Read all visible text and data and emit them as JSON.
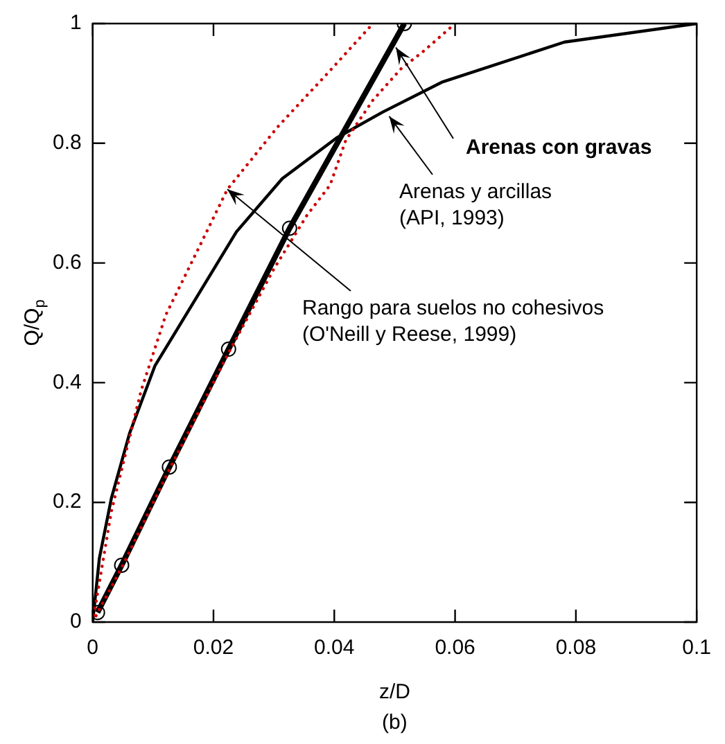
{
  "chart_data": {
    "type": "line",
    "xlabel": "z/D",
    "ylabel": "Q/Q$_{p}$",
    "xlim": [
      0,
      0.1
    ],
    "xticks": [
      0,
      0.02,
      0.04,
      0.06,
      0.08,
      0.1
    ],
    "ylim": [
      0,
      1
    ],
    "yticks": [
      0,
      0.2,
      0.4,
      0.6,
      0.8,
      1
    ],
    "grid": false,
    "legend": false,
    "series": [
      {
        "color": "#000000",
        "marker": "circle",
        "line_style": "solid",
        "x": [
          0.0008,
          0.0048,
          0.0127,
          0.0225,
          0.0326,
          0.0516
        ],
        "values": [
          0.016,
          0.095,
          0.259,
          0.456,
          0.658,
          1.0
        ]
      },
      {
        "color": "#000000",
        "marker": "none",
        "line_style": "solid",
        "x": [
          0,
          0.0011,
          0.0031,
          0.0061,
          0.0103,
          0.0238,
          0.0314,
          0.0404,
          0.048,
          0.0578,
          0.0781,
          0.1
        ],
        "values": [
          0,
          0.106,
          0.207,
          0.315,
          0.428,
          0.652,
          0.741,
          0.809,
          0.852,
          0.902,
          0.969,
          1.0
        ]
      },
      {
        "color": "#cc0000",
        "marker": "none",
        "line_style": "dotted",
        "x": [
          0,
          0.0031,
          0.008,
          0.0121,
          0.0178,
          0.0223,
          0.0306,
          0.0389,
          0.0464
        ],
        "values": [
          0,
          0.185,
          0.386,
          0.513,
          0.63,
          0.723,
          0.827,
          0.917,
          1.0
        ]
      },
      {
        "color": "#cc0000",
        "marker": "none",
        "line_style": "dotted",
        "x": [
          0,
          0.005,
          0.0127,
          0.0225,
          0.03,
          0.0355,
          0.0393,
          0.0419,
          0.0464,
          0.051,
          0.0548,
          0.06
        ],
        "values": [
          0,
          0.095,
          0.255,
          0.45,
          0.59,
          0.68,
          0.73,
          0.805,
          0.872,
          0.924,
          0.954,
          1.0
        ]
      }
    ],
    "annotations": [
      {
        "text": "Arenas con gravas",
        "x": 0.0502,
        "y": 0.96
      },
      {
        "text": "Arenas y arcillas\n(API, 1993)",
        "x": 0.0491,
        "y": 0.845
      },
      {
        "text": "Rango para suelos no cohesivos\n(O'Neill y Reese, 1999)",
        "x": 0.0223,
        "y": 0.723
      },
      "(b)"
    ]
  }
}
